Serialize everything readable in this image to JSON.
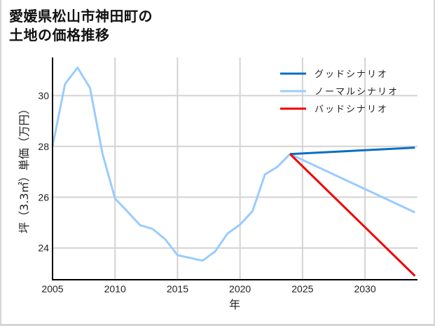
{
  "title_line1": "愛媛県松山市神田町の",
  "title_line2": "土地の価格推移",
  "chart_data": {
    "type": "line",
    "title": "愛媛県松山市神田町の土地の価格推移",
    "xlabel": "年",
    "ylabel": "坪（3.3㎡）単価（万円）",
    "xlim": [
      2005,
      2034.2
    ],
    "ylim": [
      22.75,
      31.5
    ],
    "xticks": [
      2005,
      2010,
      2015,
      2020,
      2025,
      2030
    ],
    "yticks": [
      24,
      26,
      28,
      30
    ],
    "grid": true,
    "legend_position": "upper right",
    "series": [
      {
        "name": "グッドシナリオ",
        "color": "#0a6fc2",
        "x": [
          2024,
          2034
        ],
        "values": [
          27.7,
          27.95
        ]
      },
      {
        "name": "ノーマルシナリオ",
        "color": "#99ccff",
        "x": [
          2005,
          2006,
          2007,
          2008,
          2009,
          2010,
          2011,
          2012,
          2013,
          2014,
          2015,
          2016,
          2017,
          2018,
          2019,
          2020,
          2021,
          2022,
          2023,
          2024,
          2034
        ],
        "values": [
          28.0,
          30.45,
          31.1,
          30.3,
          27.7,
          25.95,
          25.43,
          24.9,
          24.75,
          24.35,
          23.72,
          23.61,
          23.5,
          23.86,
          24.57,
          24.92,
          25.45,
          26.9,
          27.2,
          27.7,
          25.4
        ]
      },
      {
        "name": "バッドシナリオ",
        "color": "#ee0000",
        "x": [
          2024,
          2034
        ],
        "values": [
          27.7,
          22.9
        ]
      }
    ]
  }
}
